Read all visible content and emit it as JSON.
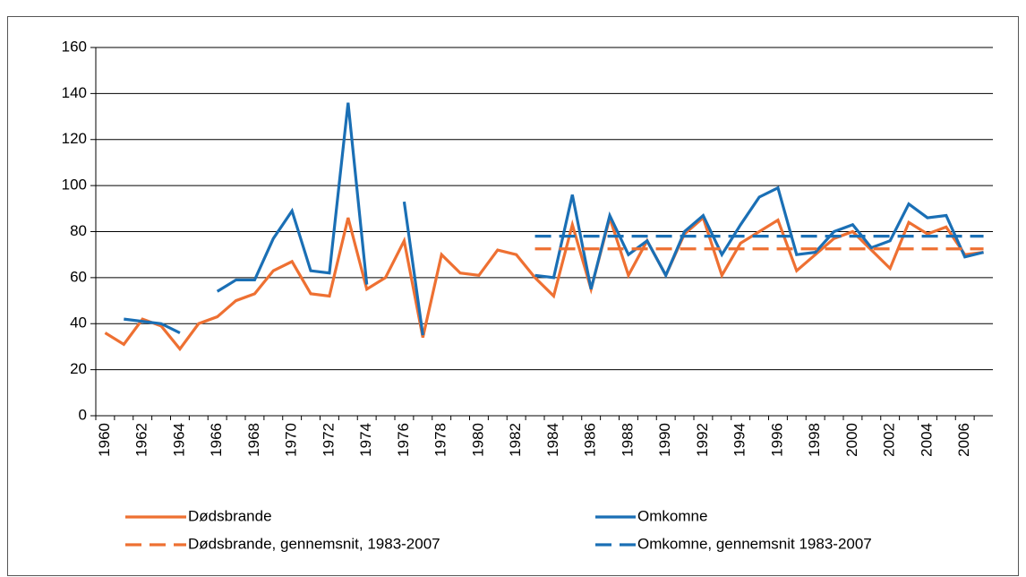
{
  "chart_data": {
    "type": "line",
    "x": [
      1960,
      1961,
      1962,
      1963,
      1964,
      1965,
      1966,
      1967,
      1968,
      1969,
      1970,
      1971,
      1972,
      1973,
      1974,
      1975,
      1976,
      1977,
      1978,
      1979,
      1980,
      1981,
      1982,
      1983,
      1984,
      1985,
      1986,
      1987,
      1988,
      1989,
      1990,
      1991,
      1992,
      1993,
      1994,
      1995,
      1996,
      1997,
      1998,
      1999,
      2000,
      2001,
      2002,
      2003,
      2004,
      2005,
      2006,
      2007
    ],
    "xlim": [
      1959.5,
      2007.5
    ],
    "xticks": [
      1960,
      1962,
      1964,
      1966,
      1968,
      1970,
      1972,
      1974,
      1976,
      1978,
      1980,
      1982,
      1984,
      1986,
      1988,
      1990,
      1992,
      1994,
      1996,
      1998,
      2000,
      2002,
      2004,
      2006
    ],
    "ylim": [
      0,
      160
    ],
    "yticks": [
      0,
      20,
      40,
      60,
      80,
      100,
      120,
      140,
      160
    ],
    "grid": true,
    "series": [
      {
        "name": "Dødsbrande",
        "color": "#ee7032",
        "dash": false,
        "values": [
          36,
          31,
          42,
          39,
          29,
          40,
          43,
          50,
          53,
          63,
          67,
          53,
          52,
          86,
          55,
          60,
          76,
          34,
          70,
          62,
          61,
          72,
          70,
          60,
          52,
          83,
          55,
          86,
          61,
          76,
          61,
          79,
          86,
          61,
          75,
          80,
          85,
          63,
          70,
          77,
          80,
          72,
          64,
          84,
          79,
          82,
          70,
          71
        ]
      },
      {
        "name": "Omkomne",
        "color": "#1a6fb5",
        "dash": false,
        "values": [
          null,
          42,
          41,
          40,
          36,
          null,
          54,
          59,
          59,
          77,
          89,
          63,
          62,
          136,
          57,
          null,
          93,
          35,
          null,
          null,
          null,
          null,
          null,
          61,
          60,
          96,
          55,
          87,
          70,
          76,
          61,
          80,
          87,
          70,
          83,
          95,
          99,
          70,
          71,
          80,
          83,
          73,
          76,
          92,
          86,
          87,
          69,
          71
        ]
      },
      {
        "name": "Dødsbrande, gennemsnit, 1983-2007",
        "color": "#ee7032",
        "dash": true,
        "values": [
          null,
          null,
          null,
          null,
          null,
          null,
          null,
          null,
          null,
          null,
          null,
          null,
          null,
          null,
          null,
          null,
          null,
          null,
          null,
          null,
          null,
          null,
          null,
          72.5,
          72.5,
          72.5,
          72.5,
          72.5,
          72.5,
          72.5,
          72.5,
          72.5,
          72.5,
          72.5,
          72.5,
          72.5,
          72.5,
          72.5,
          72.5,
          72.5,
          72.5,
          72.5,
          72.5,
          72.5,
          72.5,
          72.5,
          72.5,
          72.5
        ]
      },
      {
        "name": "Omkomne, gennemsnit 1983-2007",
        "color": "#1a6fb5",
        "dash": true,
        "values": [
          null,
          null,
          null,
          null,
          null,
          null,
          null,
          null,
          null,
          null,
          null,
          null,
          null,
          null,
          null,
          null,
          null,
          null,
          null,
          null,
          null,
          null,
          null,
          78,
          78,
          78,
          78,
          78,
          78,
          78,
          78,
          78,
          78,
          78,
          78,
          78,
          78,
          78,
          78,
          78,
          78,
          78,
          78,
          78,
          78,
          78,
          78,
          78
        ]
      }
    ]
  }
}
